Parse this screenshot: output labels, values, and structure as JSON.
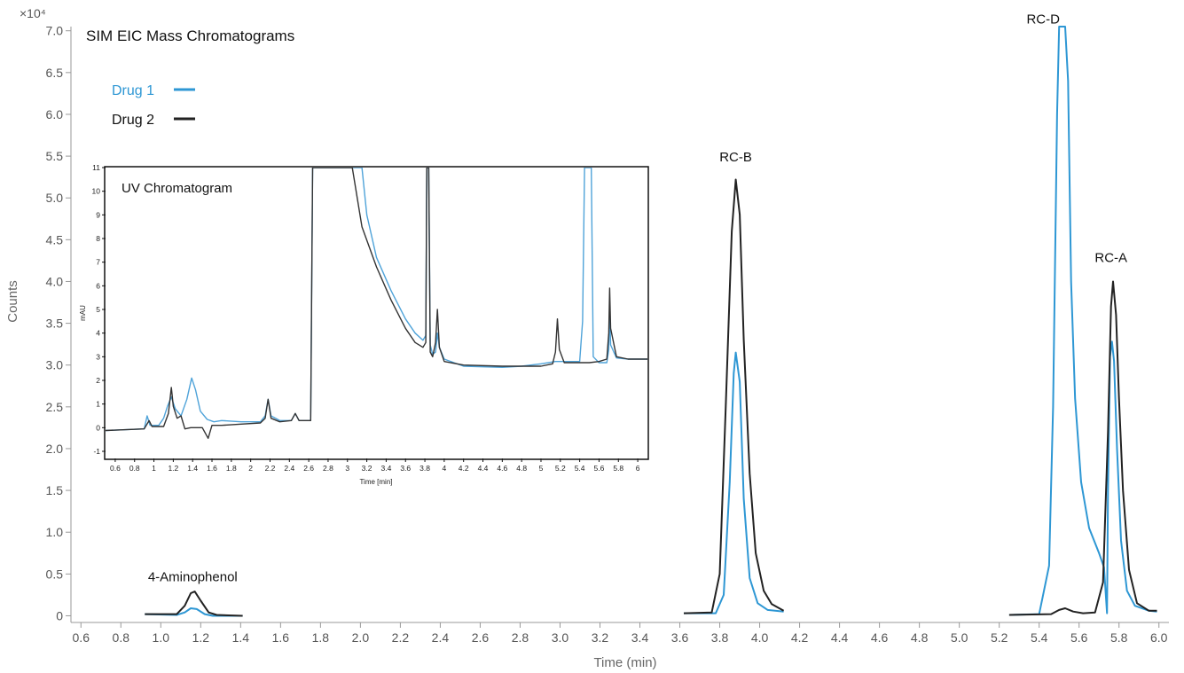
{
  "chart_data": [
    {
      "type": "line",
      "title": "SIM EIC Mass Chromatograms",
      "xlabel": "Time (min)",
      "ylabel": "Counts",
      "y_multiplier": "×10⁴",
      "xlim": [
        0.55,
        6.05
      ],
      "ylim": [
        -0.08,
        7.05
      ],
      "x_ticks": [
        "0.6",
        "0.8",
        "1.0",
        "1.2",
        "1.4",
        "1.6",
        "1.8",
        "2.0",
        "2.2",
        "2.4",
        "2.6",
        "2.8",
        "3.0",
        "3.2",
        "3.4",
        "3.6",
        "3.8",
        "4.0",
        "4.2",
        "4.4",
        "4.6",
        "4.8",
        "5.0",
        "5.2",
        "5.4",
        "5.6",
        "5.8",
        "6.0"
      ],
      "y_ticks": [
        "0",
        "0.5",
        "1.0",
        "1.5",
        "2.0",
        "2.5",
        "3.0",
        "3.5",
        "4.0",
        "4.5",
        "5.0",
        "5.5",
        "6.0",
        "6.5",
        "7.0"
      ],
      "legend": {
        "placement": "top-left"
      },
      "annotations": [
        {
          "label": "4-Aminophenol",
          "x": 1.16,
          "y": 0.33
        },
        {
          "label": "RC-B",
          "x": 3.88,
          "y": 5.35
        },
        {
          "label": "RC-D",
          "x": 5.42,
          "y": 7.0
        },
        {
          "label": "RC-A",
          "x": 5.76,
          "y": 4.15
        }
      ],
      "series": [
        {
          "name": "Drug 1",
          "color": "#2E97D4",
          "segments": [
            [
              [
                0.92,
                0.02
              ],
              [
                1.08,
                0.01
              ],
              [
                1.12,
                0.04
              ],
              [
                1.15,
                0.09
              ],
              [
                1.18,
                0.08
              ],
              [
                1.22,
                0.02
              ],
              [
                1.26,
                0.0
              ],
              [
                1.41,
                0.0
              ]
            ],
            [
              [
                3.62,
                0.03
              ],
              [
                3.78,
                0.03
              ],
              [
                3.82,
                0.25
              ],
              [
                3.85,
                1.6
              ],
              [
                3.87,
                2.9
              ],
              [
                3.88,
                3.15
              ],
              [
                3.9,
                2.8
              ],
              [
                3.92,
                1.4
              ],
              [
                3.95,
                0.45
              ],
              [
                3.99,
                0.15
              ],
              [
                4.04,
                0.07
              ],
              [
                4.12,
                0.05
              ]
            ],
            [
              [
                5.25,
                0.01
              ],
              [
                5.4,
                0.02
              ],
              [
                5.45,
                0.6
              ],
              [
                5.47,
                2.5
              ],
              [
                5.49,
                6.0
              ],
              [
                5.5,
                7.05
              ],
              [
                5.53,
                7.05
              ],
              [
                5.545,
                6.4
              ],
              [
                5.56,
                4.0
              ],
              [
                5.58,
                2.6
              ],
              [
                5.61,
                1.6
              ],
              [
                5.65,
                1.05
              ],
              [
                5.7,
                0.75
              ],
              [
                5.725,
                0.58
              ],
              [
                5.74,
                0.03
              ],
              [
                5.745,
                1.5
              ],
              [
                5.755,
                3.1
              ],
              [
                5.765,
                3.28
              ],
              [
                5.775,
                3.05
              ],
              [
                5.79,
                2.0
              ],
              [
                5.81,
                0.9
              ],
              [
                5.84,
                0.3
              ],
              [
                5.88,
                0.12
              ],
              [
                5.95,
                0.06
              ],
              [
                5.99,
                0.05
              ]
            ]
          ]
        },
        {
          "name": "Drug 2",
          "color": "#222222",
          "segments": [
            [
              [
                0.92,
                0.02
              ],
              [
                1.08,
                0.02
              ],
              [
                1.12,
                0.12
              ],
              [
                1.15,
                0.27
              ],
              [
                1.17,
                0.29
              ],
              [
                1.2,
                0.18
              ],
              [
                1.24,
                0.04
              ],
              [
                1.28,
                0.01
              ],
              [
                1.41,
                0.0
              ]
            ],
            [
              [
                3.62,
                0.03
              ],
              [
                3.76,
                0.04
              ],
              [
                3.8,
                0.5
              ],
              [
                3.83,
                2.5
              ],
              [
                3.86,
                4.6
              ],
              [
                3.88,
                5.22
              ],
              [
                3.9,
                4.8
              ],
              [
                3.92,
                3.3
              ],
              [
                3.95,
                1.7
              ],
              [
                3.98,
                0.75
              ],
              [
                4.02,
                0.3
              ],
              [
                4.06,
                0.14
              ],
              [
                4.12,
                0.06
              ]
            ],
            [
              [
                5.25,
                0.01
              ],
              [
                5.46,
                0.02
              ],
              [
                5.5,
                0.07
              ],
              [
                5.53,
                0.09
              ],
              [
                5.57,
                0.05
              ],
              [
                5.62,
                0.03
              ],
              [
                5.68,
                0.04
              ],
              [
                5.72,
                0.4
              ],
              [
                5.745,
                2.2
              ],
              [
                5.76,
                3.7
              ],
              [
                5.77,
                4.0
              ],
              [
                5.785,
                3.6
              ],
              [
                5.8,
                2.6
              ],
              [
                5.82,
                1.5
              ],
              [
                5.85,
                0.55
              ],
              [
                5.89,
                0.15
              ],
              [
                5.95,
                0.06
              ],
              [
                5.99,
                0.06
              ]
            ]
          ]
        }
      ]
    },
    {
      "type": "line",
      "title": "UV Chromatogram",
      "xlabel": "Time [min]",
      "ylabel": "mAU",
      "xlim": [
        0.5,
        6.1
      ],
      "ylim": [
        -1.3,
        11.0
      ],
      "x_ticks": [
        "0.6",
        "0.8",
        "1",
        "1.2",
        "1.4",
        "1.6",
        "1.8",
        "2",
        "2.2",
        "2.4",
        "2.6",
        "2.8",
        "3",
        "3.2",
        "3.4",
        "3.6",
        "3.8",
        "4",
        "4.2",
        "4.4",
        "4.6",
        "4.8",
        "5",
        "5.2",
        "5.4",
        "5.6",
        "5.8",
        "6"
      ],
      "y_ticks": [
        "-1",
        "0",
        "1",
        "2",
        "3",
        "4",
        "5",
        "6",
        "7",
        "8",
        "9",
        "10",
        "11"
      ],
      "series": [
        {
          "name": "Drug 1",
          "color": "#4FA3D9",
          "points": [
            [
              0.5,
              -0.12
            ],
            [
              0.9,
              -0.05
            ],
            [
              0.93,
              0.5
            ],
            [
              0.96,
              0.1
            ],
            [
              1.05,
              0.1
            ],
            [
              1.1,
              0.4
            ],
            [
              1.14,
              0.9
            ],
            [
              1.18,
              1.3
            ],
            [
              1.22,
              0.8
            ],
            [
              1.28,
              0.5
            ],
            [
              1.34,
              1.2
            ],
            [
              1.39,
              2.1
            ],
            [
              1.43,
              1.6
            ],
            [
              1.48,
              0.7
            ],
            [
              1.55,
              0.35
            ],
            [
              1.62,
              0.25
            ],
            [
              1.7,
              0.3
            ],
            [
              1.9,
              0.25
            ],
            [
              2.1,
              0.25
            ],
            [
              2.15,
              0.5
            ],
            [
              2.18,
              1.2
            ],
            [
              2.21,
              0.5
            ],
            [
              2.3,
              0.3
            ],
            [
              2.42,
              0.3
            ],
            [
              2.46,
              0.6
            ],
            [
              2.5,
              0.3
            ],
            [
              2.62,
              0.3
            ],
            [
              2.64,
              11.0
            ],
            [
              3.15,
              11.0
            ],
            [
              3.2,
              9.0
            ],
            [
              3.3,
              7.2
            ],
            [
              3.45,
              5.8
            ],
            [
              3.6,
              4.6
            ],
            [
              3.7,
              4.0
            ],
            [
              3.78,
              3.7
            ],
            [
              3.81,
              3.9
            ],
            [
              3.82,
              11.0
            ],
            [
              3.84,
              11.0
            ],
            [
              3.855,
              3.5
            ],
            [
              3.88,
              3.1
            ],
            [
              3.91,
              3.2
            ],
            [
              3.93,
              4.0
            ],
            [
              3.95,
              3.4
            ],
            [
              4.0,
              2.9
            ],
            [
              4.2,
              2.6
            ],
            [
              4.6,
              2.55
            ],
            [
              4.8,
              2.6
            ],
            [
              5.0,
              2.7
            ],
            [
              5.15,
              2.8
            ],
            [
              5.4,
              2.8
            ],
            [
              5.43,
              4.5
            ],
            [
              5.45,
              11.0
            ],
            [
              5.52,
              11.0
            ],
            [
              5.54,
              3.0
            ],
            [
              5.6,
              2.75
            ],
            [
              5.68,
              2.75
            ],
            [
              5.7,
              3.3
            ],
            [
              5.71,
              5.0
            ],
            [
              5.72,
              3.5
            ],
            [
              5.78,
              2.95
            ],
            [
              5.9,
              2.9
            ],
            [
              6.1,
              2.9
            ]
          ]
        },
        {
          "name": "Drug 2",
          "color": "#333333",
          "points": [
            [
              0.5,
              -0.12
            ],
            [
              0.9,
              -0.05
            ],
            [
              0.95,
              0.3
            ],
            [
              0.98,
              0.05
            ],
            [
              1.1,
              0.05
            ],
            [
              1.15,
              0.6
            ],
            [
              1.18,
              1.7
            ],
            [
              1.2,
              0.9
            ],
            [
              1.24,
              0.4
            ],
            [
              1.28,
              0.5
            ],
            [
              1.32,
              -0.05
            ],
            [
              1.38,
              0.0
            ],
            [
              1.5,
              0.0
            ],
            [
              1.56,
              -0.45
            ],
            [
              1.6,
              0.1
            ],
            [
              1.7,
              0.1
            ],
            [
              1.9,
              0.15
            ],
            [
              2.1,
              0.2
            ],
            [
              2.15,
              0.4
            ],
            [
              2.18,
              1.2
            ],
            [
              2.21,
              0.4
            ],
            [
              2.3,
              0.25
            ],
            [
              2.42,
              0.3
            ],
            [
              2.46,
              0.6
            ],
            [
              2.5,
              0.3
            ],
            [
              2.62,
              0.3
            ],
            [
              2.64,
              11.0
            ],
            [
              3.05,
              11.0
            ],
            [
              3.15,
              8.5
            ],
            [
              3.3,
              6.8
            ],
            [
              3.45,
              5.4
            ],
            [
              3.6,
              4.2
            ],
            [
              3.7,
              3.6
            ],
            [
              3.78,
              3.4
            ],
            [
              3.81,
              3.6
            ],
            [
              3.82,
              11.0
            ],
            [
              3.84,
              11.0
            ],
            [
              3.855,
              3.2
            ],
            [
              3.88,
              3.0
            ],
            [
              3.91,
              3.6
            ],
            [
              3.93,
              5.0
            ],
            [
              3.95,
              3.4
            ],
            [
              4.0,
              2.8
            ],
            [
              4.2,
              2.65
            ],
            [
              4.6,
              2.6
            ],
            [
              4.8,
              2.6
            ],
            [
              5.0,
              2.6
            ],
            [
              5.12,
              2.7
            ],
            [
              5.15,
              3.2
            ],
            [
              5.17,
              4.6
            ],
            [
              5.19,
              3.3
            ],
            [
              5.24,
              2.75
            ],
            [
              5.4,
              2.75
            ],
            [
              5.5,
              2.75
            ],
            [
              5.6,
              2.8
            ],
            [
              5.68,
              2.9
            ],
            [
              5.7,
              4.0
            ],
            [
              5.71,
              5.9
            ],
            [
              5.72,
              4.2
            ],
            [
              5.78,
              3.0
            ],
            [
              5.9,
              2.9
            ],
            [
              6.1,
              2.9
            ]
          ]
        }
      ]
    }
  ]
}
